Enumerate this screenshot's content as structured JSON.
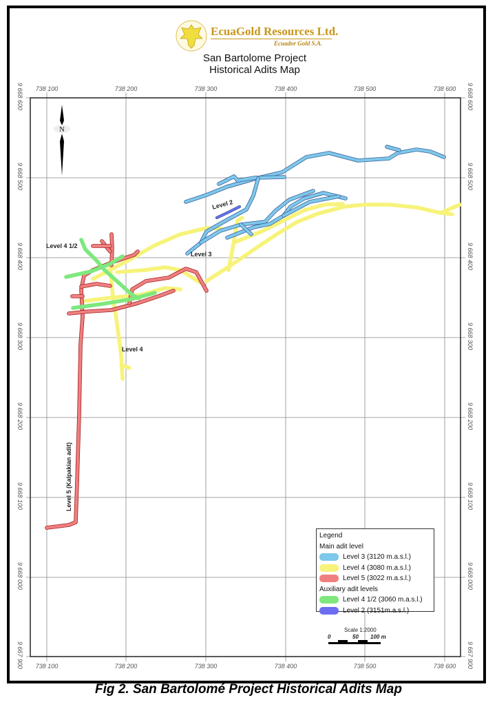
{
  "header": {
    "company": "EcuaGold Resources Ltd.",
    "subsidiary": "Ecuador Gold S.A.",
    "title_line1": "San Bartolome Project",
    "title_line2": "Historical Adits Map"
  },
  "map": {
    "north_label": "N",
    "easting_labels": [
      "738 100",
      "738 200",
      "738 300",
      "738 400",
      "738 500",
      "738 600"
    ],
    "northing_labels": [
      "9 668 600",
      "9 668 500",
      "9 668 400",
      "9 668 300",
      "9 668 200",
      "9 668 100",
      "9 668 000",
      "9 667 900"
    ],
    "adit_labels": {
      "level_4_half": "Level 4 1/2",
      "level_3": "Level 3",
      "level_2": "Level 2",
      "level_4": "Level 4",
      "level_5": "Level 5 (Kalpakian adit)"
    },
    "colors": {
      "level_3": "#7ec8ea",
      "level_4": "#f7f37a",
      "level_5": "#f08080",
      "level_4_half": "#7ee87e",
      "level_2": "#6d6df0"
    }
  },
  "legend": {
    "title": "Legend",
    "main_heading": "Main adit level",
    "main_items": [
      "Level 3 (3120 m.a.s.l.)",
      "Level 4 (3080 m.a.s.l.)",
      "Level 5 (3022 m.a.s.l.)"
    ],
    "aux_heading": "Auxiliary adit levels",
    "aux_items": [
      "Level 4 1/2 (3060 m.a.s.l.)",
      "Level 2 (3151m.a.s.l.)"
    ]
  },
  "scale": {
    "label": "Scale 1:2000",
    "ticks": [
      "0",
      "50",
      "100 m"
    ]
  },
  "caption": "Fig 2. San Bartolomé Project Historical Adits Map"
}
